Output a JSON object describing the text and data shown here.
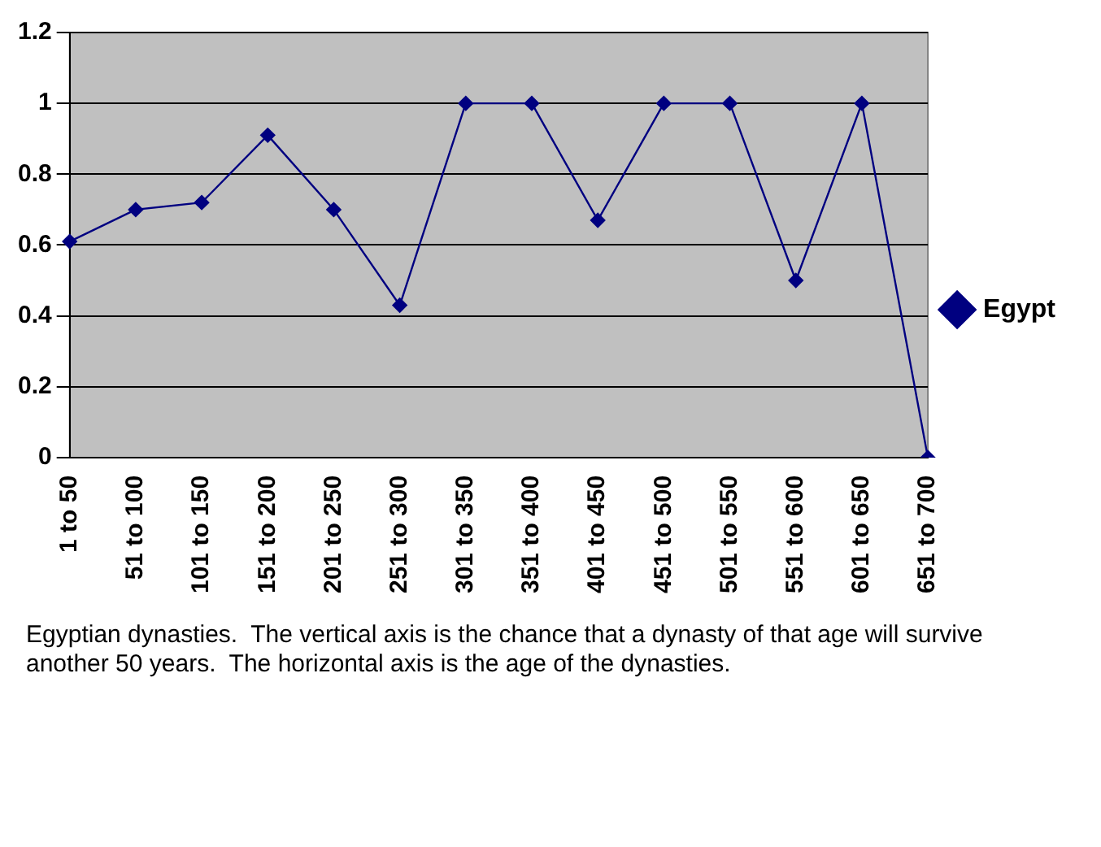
{
  "chart_data": {
    "type": "line",
    "categories": [
      "1 to 50",
      "51 to 100",
      "101 to 150",
      "151 to 200",
      "201 to 250",
      "251 to 300",
      "301 to 350",
      "351 to 400",
      "401 to 450",
      "451 to 500",
      "501 to 550",
      "551 to 600",
      "601 to 650",
      "651 to 700"
    ],
    "series": [
      {
        "name": "Egypt",
        "color": "#000080",
        "values": [
          0.61,
          0.7,
          0.72,
          0.91,
          0.7,
          0.43,
          1,
          1,
          0.67,
          1,
          1,
          0.5,
          1,
          0
        ]
      }
    ],
    "ylim": [
      0,
      1.2
    ],
    "yticks": [
      0,
      0.2,
      0.4,
      0.6,
      0.8,
      1,
      1.2
    ],
    "grid": "y",
    "legend": "right",
    "marker": "diamond",
    "line_style": "solid",
    "annotations": [
      "Egyptian dynasties.  The vertical axis is the chance that a dynasty of that age will survive another 50 years.  The horizontal axis is the age of the dynasties."
    ]
  }
}
